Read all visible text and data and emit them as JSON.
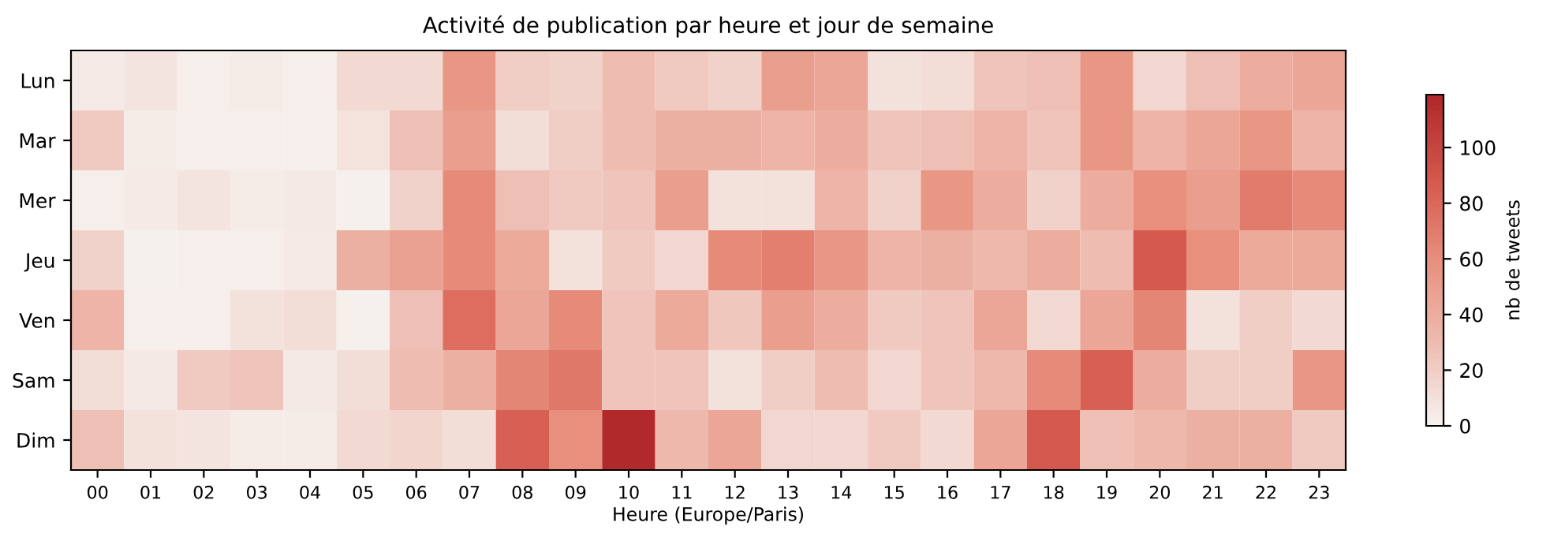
{
  "chart_data": {
    "type": "heatmap",
    "title": "Activité de publication par heure et jour de semaine",
    "xlabel": "Heure (Europe/Paris)",
    "clabel": "nb de tweets",
    "categories": [
      "00",
      "01",
      "02",
      "03",
      "04",
      "05",
      "06",
      "07",
      "08",
      "09",
      "10",
      "11",
      "12",
      "13",
      "14",
      "15",
      "16",
      "17",
      "18",
      "19",
      "20",
      "21",
      "22",
      "23"
    ],
    "y_categories": [
      "Lun",
      "Mar",
      "Mer",
      "Jeu",
      "Ven",
      "Sam",
      "Dim"
    ],
    "cells": [
      [
        5,
        8,
        3,
        4,
        3,
        14,
        14,
        55,
        20,
        18,
        30,
        22,
        18,
        50,
        45,
        10,
        12,
        25,
        28,
        55,
        15,
        28,
        40,
        45
      ],
      [
        22,
        4,
        3,
        3,
        3,
        9,
        28,
        50,
        12,
        20,
        30,
        38,
        38,
        35,
        40,
        25,
        28,
        35,
        25,
        55,
        35,
        45,
        55,
        35
      ],
      [
        3,
        5,
        8,
        4,
        6,
        2,
        18,
        62,
        28,
        22,
        25,
        50,
        10,
        10,
        35,
        18,
        55,
        40,
        18,
        40,
        60,
        50,
        70,
        62
      ],
      [
        18,
        2,
        3,
        3,
        5,
        38,
        48,
        62,
        42,
        10,
        22,
        15,
        62,
        68,
        55,
        35,
        38,
        32,
        40,
        30,
        88,
        60,
        42,
        42
      ],
      [
        35,
        3,
        3,
        10,
        12,
        2,
        28,
        78,
        45,
        62,
        25,
        42,
        24,
        50,
        40,
        22,
        25,
        45,
        14,
        45,
        65,
        10,
        20,
        14
      ],
      [
        12,
        6,
        22,
        25,
        6,
        12,
        30,
        38,
        65,
        72,
        25,
        25,
        10,
        20,
        30,
        15,
        25,
        32,
        62,
        85,
        40,
        20,
        20,
        55
      ],
      [
        28,
        10,
        8,
        4,
        4,
        14,
        16,
        12,
        85,
        60,
        118,
        32,
        45,
        15,
        15,
        22,
        14,
        45,
        88,
        28,
        32,
        38,
        38,
        22
      ]
    ],
    "clim": [
      0,
      119
    ],
    "cticks": [
      0,
      20,
      40,
      60,
      80,
      100
    ],
    "grid": false
  }
}
